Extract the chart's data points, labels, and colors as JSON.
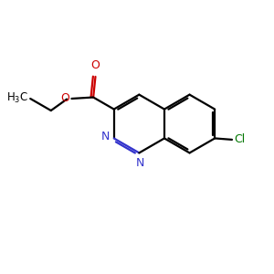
{
  "bg_color": "#ffffff",
  "bond_color": "#000000",
  "N_color": "#3333cc",
  "O_color": "#cc0000",
  "Cl_color": "#007700",
  "line_width": 1.6,
  "dbo": 0.08,
  "figsize": [
    3.0,
    3.0
  ],
  "dpi": 100,
  "xlim": [
    0,
    10
  ],
  "ylim": [
    0,
    10
  ]
}
